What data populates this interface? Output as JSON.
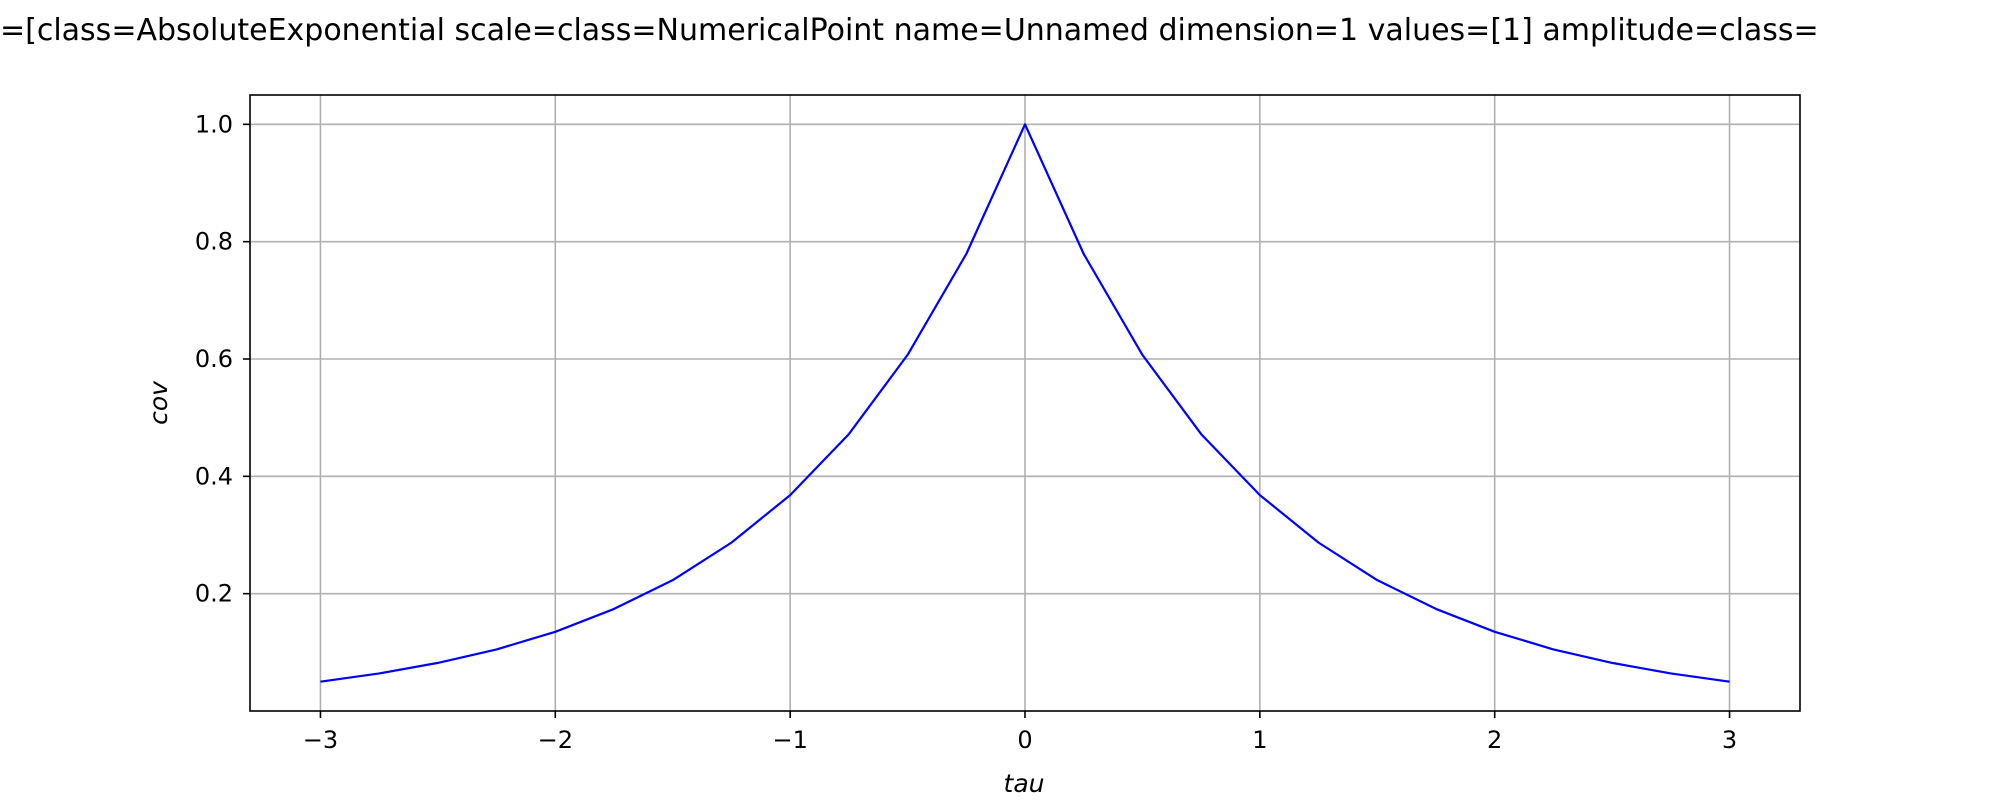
{
  "chart_data": {
    "type": "line",
    "title": "=[class=AbsoluteExponential scale=class=NumericalPoint name=Unnamed dimension=1 values=[1] amplitude=class=",
    "xlabel": "tau",
    "ylabel": "cov",
    "xlim": [
      -3.3,
      3.3
    ],
    "ylim": [
      0.0,
      1.05
    ],
    "x_ticks": [
      -3,
      -2,
      -1,
      0,
      1,
      2,
      3
    ],
    "x_tick_labels": [
      "−3",
      "−2",
      "−1",
      "0",
      "1",
      "2",
      "3"
    ],
    "y_ticks": [
      0.2,
      0.4,
      0.6,
      0.8,
      1.0
    ],
    "y_tick_labels": [
      "0.2",
      "0.4",
      "0.6",
      "0.8",
      "1.0"
    ],
    "grid": true,
    "series": [
      {
        "color": "#0000ff",
        "x": [
          -3.0,
          -2.75,
          -2.5,
          -2.25,
          -2.0,
          -1.75,
          -1.5,
          -1.25,
          -1.0,
          -0.75,
          -0.5,
          -0.25,
          0.0,
          0.25,
          0.5,
          0.75,
          1.0,
          1.25,
          1.5,
          1.75,
          2.0,
          2.25,
          2.5,
          2.75,
          3.0
        ],
        "values": [
          0.05,
          0.064,
          0.082,
          0.105,
          0.135,
          0.174,
          0.223,
          0.287,
          0.368,
          0.472,
          0.607,
          0.779,
          1.0,
          0.779,
          0.607,
          0.472,
          0.368,
          0.287,
          0.223,
          0.174,
          0.135,
          0.105,
          0.082,
          0.064,
          0.05
        ]
      }
    ]
  }
}
